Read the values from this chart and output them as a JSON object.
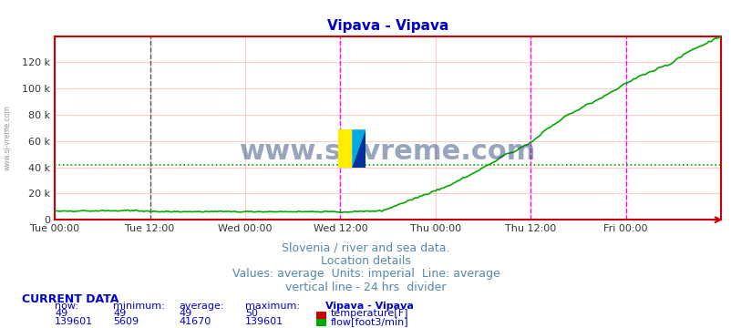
{
  "title": "Vipava - Vipava",
  "title_color": "#0000cc",
  "title_fontsize": 11,
  "bg_color": "#ffffff",
  "plot_bg_color": "#ffffff",
  "grid_color": "#ffcccc",
  "xlim": [
    0,
    336
  ],
  "ylim": [
    0,
    140000
  ],
  "yticks": [
    0,
    20000,
    40000,
    60000,
    80000,
    100000,
    120000
  ],
  "ytick_labels": [
    "0",
    "20 k",
    "40 k",
    "60 k",
    "80 k",
    "100 k",
    "120 k"
  ],
  "xtick_positions": [
    0,
    48,
    96,
    144,
    192,
    240,
    288
  ],
  "xtick_labels": [
    "Tue 00:00",
    "Tue 12:00",
    "Wed 00:00",
    "Wed 12:00",
    "Thu 00:00",
    "Thu 12:00",
    "Fri 00:00"
  ],
  "flow_color": "#00aa00",
  "temp_color": "#cc0000",
  "avg_line_color": "#00aa00",
  "avg_flow": 41670,
  "vlines_black": [
    48
  ],
  "vlines_magenta": [
    144,
    240,
    288,
    336
  ],
  "footer_lines": [
    "Slovenia / river and sea data.",
    "Location details",
    "Values: average  Units: imperial  Line: average",
    "vertical line - 24 hrs  divider"
  ],
  "footer_color": "#5588aa",
  "footer_fontsize": 9,
  "current_data_label": "CURRENT DATA",
  "current_data_color": "#0000cc",
  "table_headers": [
    "now:",
    "minimum:",
    "average:",
    "maximum:",
    "Vipava - Vipava"
  ],
  "table_row1": [
    "49",
    "49",
    "49",
    "50",
    "temperature[F]"
  ],
  "table_row2": [
    "139601",
    "5609",
    "41670",
    "139601",
    "flow[foot3/min]"
  ],
  "temp_swatch_color": "#cc0000",
  "flow_swatch_color": "#00aa00",
  "watermark_text": "www.si-vreme.com",
  "sidebar_text": "www.si-vreme.com",
  "num_points": 337
}
